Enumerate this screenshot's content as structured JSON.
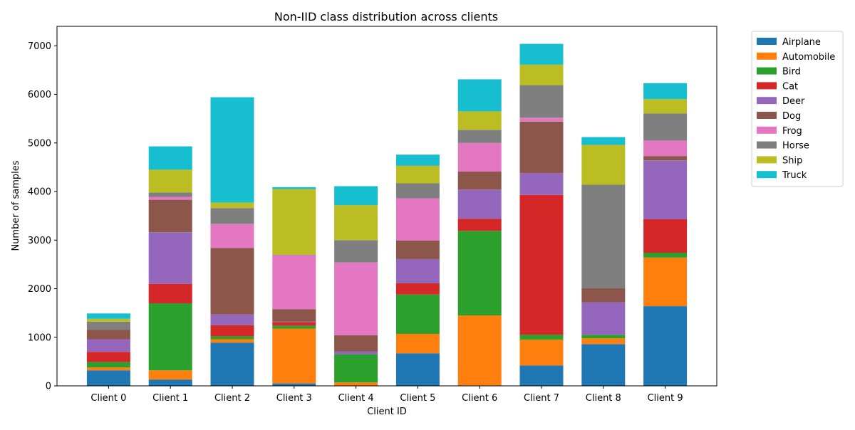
{
  "chart_data": {
    "type": "bar",
    "stacked": true,
    "title": "Non-IID class distribution across clients",
    "xlabel": "Client ID",
    "ylabel": "Number of samples",
    "ylim": [
      0,
      7400
    ],
    "yticks": [
      0,
      1000,
      2000,
      3000,
      4000,
      5000,
      6000,
      7000
    ],
    "grid": false,
    "legend_position": "outside-top-right",
    "categories": [
      "Client 0",
      "Client 1",
      "Client 2",
      "Client 3",
      "Client 4",
      "Client 5",
      "Client 6",
      "Client 7",
      "Client 8",
      "Client 9"
    ],
    "series": [
      {
        "name": "Airplane",
        "color": "#1f77b4",
        "values": [
          320,
          130,
          890,
          50,
          0,
          670,
          10,
          420,
          860,
          1640
        ]
      },
      {
        "name": "Automobile",
        "color": "#ff7f0e",
        "values": [
          60,
          190,
          70,
          1130,
          70,
          400,
          1440,
          530,
          120,
          1000
        ]
      },
      {
        "name": "Bird",
        "color": "#2ca02c",
        "values": [
          110,
          1380,
          60,
          60,
          580,
          810,
          1740,
          100,
          70,
          100
        ]
      },
      {
        "name": "Cat",
        "color": "#d62728",
        "values": [
          210,
          400,
          230,
          70,
          0,
          230,
          250,
          2880,
          0,
          690
        ]
      },
      {
        "name": "Deer",
        "color": "#9467bd",
        "values": [
          260,
          1060,
          220,
          10,
          60,
          500,
          600,
          450,
          670,
          1210
        ]
      },
      {
        "name": "Dog",
        "color": "#8c564b",
        "values": [
          190,
          670,
          1370,
          260,
          330,
          380,
          370,
          1060,
          290,
          90
        ]
      },
      {
        "name": "Frog",
        "color": "#e377c2",
        "values": [
          0,
          60,
          490,
          1110,
          1500,
          870,
          590,
          80,
          0,
          320
        ]
      },
      {
        "name": "Horse",
        "color": "#7f7f7f",
        "values": [
          170,
          90,
          330,
          10,
          460,
          310,
          270,
          670,
          2130,
          560
        ]
      },
      {
        "name": "Ship",
        "color": "#bcbd22",
        "values": [
          60,
          470,
          110,
          1350,
          720,
          360,
          380,
          420,
          820,
          290
        ]
      },
      {
        "name": "Truck",
        "color": "#17becf",
        "values": [
          110,
          480,
          2170,
          40,
          390,
          230,
          660,
          430,
          160,
          330
        ]
      }
    ]
  }
}
